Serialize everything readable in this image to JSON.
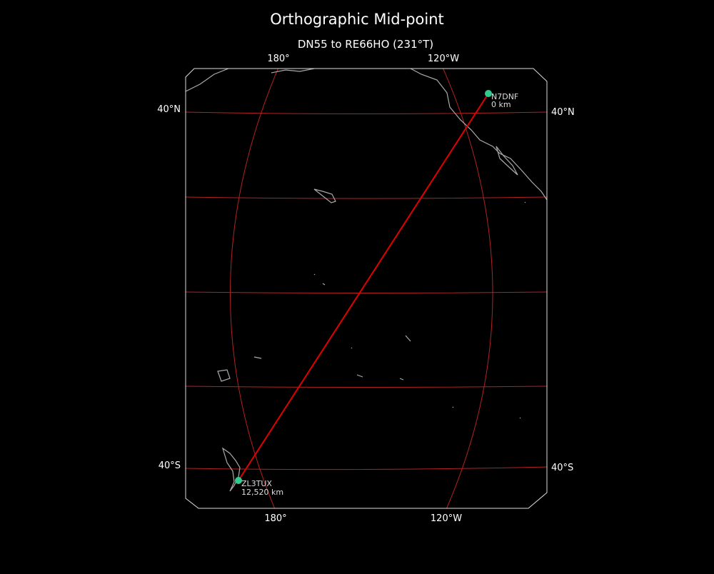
{
  "title": "Orthographic Mid-point",
  "subtitle": "DN55 to RE66HO (231°T)",
  "map": {
    "lon_labels": [
      "180°",
      "120°W"
    ],
    "lat_labels": [
      "40°N",
      "40°S"
    ],
    "stations": [
      {
        "call": "N7DNF",
        "distance": "0 km"
      },
      {
        "call": "ZL3TUX",
        "distance": "12,520 km"
      }
    ]
  }
}
